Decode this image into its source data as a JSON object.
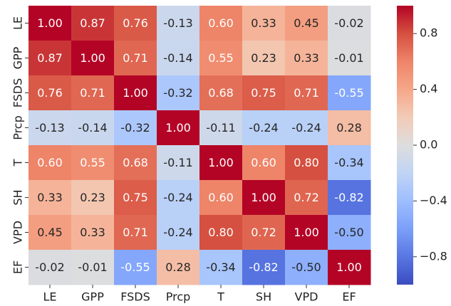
{
  "chart_data": {
    "type": "heatmap",
    "categories": [
      "LE",
      "GPP",
      "FSDS",
      "Prcp",
      "T",
      "SH",
      "VPD",
      "EF"
    ],
    "values": [
      [
        1.0,
        0.87,
        0.76,
        -0.13,
        0.6,
        0.33,
        0.45,
        -0.02
      ],
      [
        0.87,
        1.0,
        0.71,
        -0.14,
        0.55,
        0.23,
        0.33,
        -0.01
      ],
      [
        0.76,
        0.71,
        1.0,
        -0.32,
        0.68,
        0.75,
        0.71,
        -0.55
      ],
      [
        -0.13,
        -0.14,
        -0.32,
        1.0,
        -0.11,
        -0.24,
        -0.24,
        0.28
      ],
      [
        0.6,
        0.55,
        0.68,
        -0.11,
        1.0,
        0.6,
        0.8,
        -0.34
      ],
      [
        0.33,
        0.23,
        0.75,
        -0.24,
        0.6,
        1.0,
        0.72,
        -0.82
      ],
      [
        0.45,
        0.33,
        0.71,
        -0.24,
        0.8,
        0.72,
        1.0,
        -0.5
      ],
      [
        -0.02,
        -0.01,
        -0.55,
        0.28,
        -0.34,
        -0.82,
        -0.5,
        1.0
      ]
    ],
    "value_labels": [
      [
        "1.00",
        "0.87",
        "0.76",
        "-0.13",
        "0.60",
        "0.33",
        "0.45",
        "-0.02"
      ],
      [
        "0.87",
        "1.00",
        "0.71",
        "-0.14",
        "0.55",
        "0.23",
        "0.33",
        "-0.01"
      ],
      [
        "0.76",
        "0.71",
        "1.00",
        "-0.32",
        "0.68",
        "0.75",
        "0.71",
        "-0.55"
      ],
      [
        "-0.13",
        "-0.14",
        "-0.32",
        "1.00",
        "-0.11",
        "-0.24",
        "-0.24",
        "0.28"
      ],
      [
        "0.60",
        "0.55",
        "0.68",
        "-0.11",
        "1.00",
        "0.60",
        "0.80",
        "-0.34"
      ],
      [
        "0.33",
        "0.23",
        "0.75",
        "-0.24",
        "0.60",
        "1.00",
        "0.72",
        "-0.82"
      ],
      [
        "0.45",
        "0.33",
        "0.71",
        "-0.24",
        "0.80",
        "0.72",
        "1.00",
        "-0.50"
      ],
      [
        "-0.02",
        "-0.01",
        "-0.55",
        "0.28",
        "-0.34",
        "-0.82",
        "-0.50",
        "1.00"
      ]
    ],
    "colormap": "coolwarm",
    "zlim": [
      -1,
      1
    ],
    "zticks": [
      0.8,
      0.4,
      {
        "value": 0,
        "label": "0.0"
      },
      {
        "value": -0.4,
        "label": "−0.4"
      },
      {
        "value": -0.8,
        "label": "−0.8"
      }
    ]
  }
}
